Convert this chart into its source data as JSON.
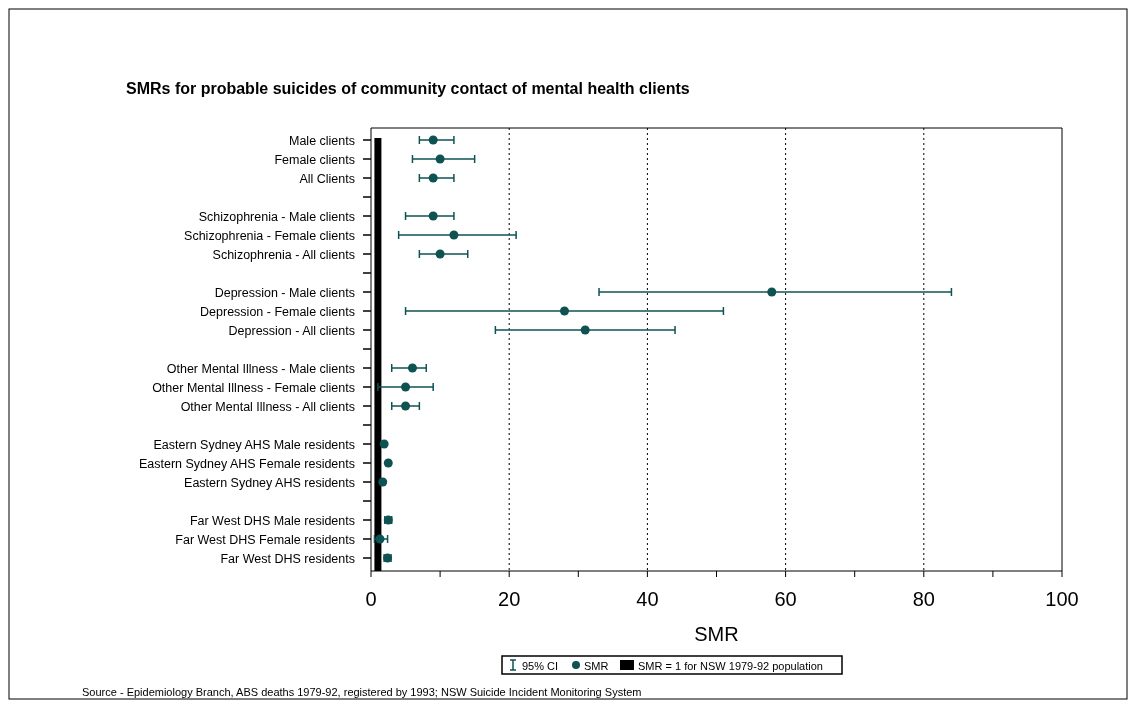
{
  "chart_data": {
    "type": "scatter",
    "orientation": "horizontal",
    "title": "SMRs for probable suicides of community contact of mental health clients",
    "xlabel": "SMR",
    "categories": [
      "Male clients",
      "Female clients",
      "All Clients",
      null,
      "Schizophrenia - Male clients",
      "Schizophrenia - Female clients",
      "Schizophrenia - All clients",
      null,
      "Depression - Male clients",
      "Depression - Female clients",
      "Depression - All clients",
      null,
      "Other Mental Illness - Male clients",
      "Other Mental Illness - Female clients",
      "Other Mental Illness - All clients",
      null,
      "Eastern Sydney AHS Male residents",
      "Eastern Sydney AHS Female residents",
      "Eastern Sydney AHS residents",
      null,
      "Far West DHS Male residents",
      "Far West DHS Female residents",
      "Far West DHS residents"
    ],
    "series": [
      {
        "name": "SMR",
        "color": "#0e5252",
        "values": [
          9,
          10,
          9,
          null,
          9,
          12,
          10,
          null,
          58,
          28,
          31,
          null,
          6,
          5,
          5,
          null,
          1.9,
          2.5,
          1.7,
          null,
          2.5,
          1.3,
          2.4
        ],
        "errors": [
          [
            7,
            12
          ],
          [
            6,
            15
          ],
          [
            7,
            12
          ],
          null,
          [
            5,
            12
          ],
          [
            4,
            21
          ],
          [
            7,
            14
          ],
          null,
          [
            33,
            84
          ],
          [
            5,
            51
          ],
          [
            18,
            44
          ],
          null,
          [
            3,
            8
          ],
          [
            1,
            9
          ],
          [
            3,
            7
          ],
          null,
          null,
          null,
          null,
          null,
          [
            2,
            3
          ],
          [
            0.5,
            2.4
          ],
          [
            1.9,
            2.9
          ]
        ]
      }
    ],
    "xlim": [
      0,
      100
    ],
    "xticks": [
      0,
      {
        "value": 10,
        "label": null
      },
      20,
      {
        "value": 30,
        "label": null
      },
      40,
      {
        "value": 50,
        "label": null
      },
      60,
      {
        "value": 70,
        "label": null
      },
      80,
      {
        "value": 90,
        "label": null
      },
      100
    ],
    "grid": "x",
    "marker": "circle",
    "legend": "bottom",
    "ref_lines": [
      {
        "axis": "x",
        "value": 1,
        "label": "SMR = 1 for NSW 1979-92 population",
        "color": "#000000"
      }
    ],
    "annotations": [
      "95% CI",
      "Source - Epidemiology Branch, ABS deaths 1979-92, registered by 1993; NSW Suicide Incident Monitoring System"
    ]
  }
}
